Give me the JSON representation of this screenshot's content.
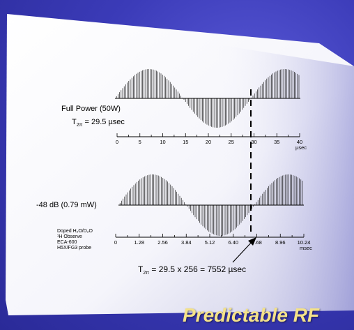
{
  "top_trace": {
    "label": "Full Power (50W)",
    "t_prefix": "T",
    "t_sub": "2π",
    "t_value": " = 29.5 µsec",
    "ticks": [
      "0",
      "5",
      "10",
      "15",
      "20",
      "25",
      "30",
      "35",
      "40"
    ],
    "unit": "µsec"
  },
  "bottom_trace": {
    "label": "-48 dB (0.79 mW)",
    "ticks": [
      "0",
      "1.28",
      "2.56",
      "3.84",
      "5.12",
      "6.40",
      "7.68",
      "8.96",
      "10.24"
    ],
    "unit": "msec",
    "sample_lines": [
      "Doped H₂O/D₂O",
      "¹H Observe",
      "ECA-600",
      "H5X/FG3 probe"
    ]
  },
  "formula": {
    "prefix": "T",
    "sub": "2π",
    "rest": " = 29.5 x 256 = 7552 µsec"
  },
  "title": "Predictable RF"
}
